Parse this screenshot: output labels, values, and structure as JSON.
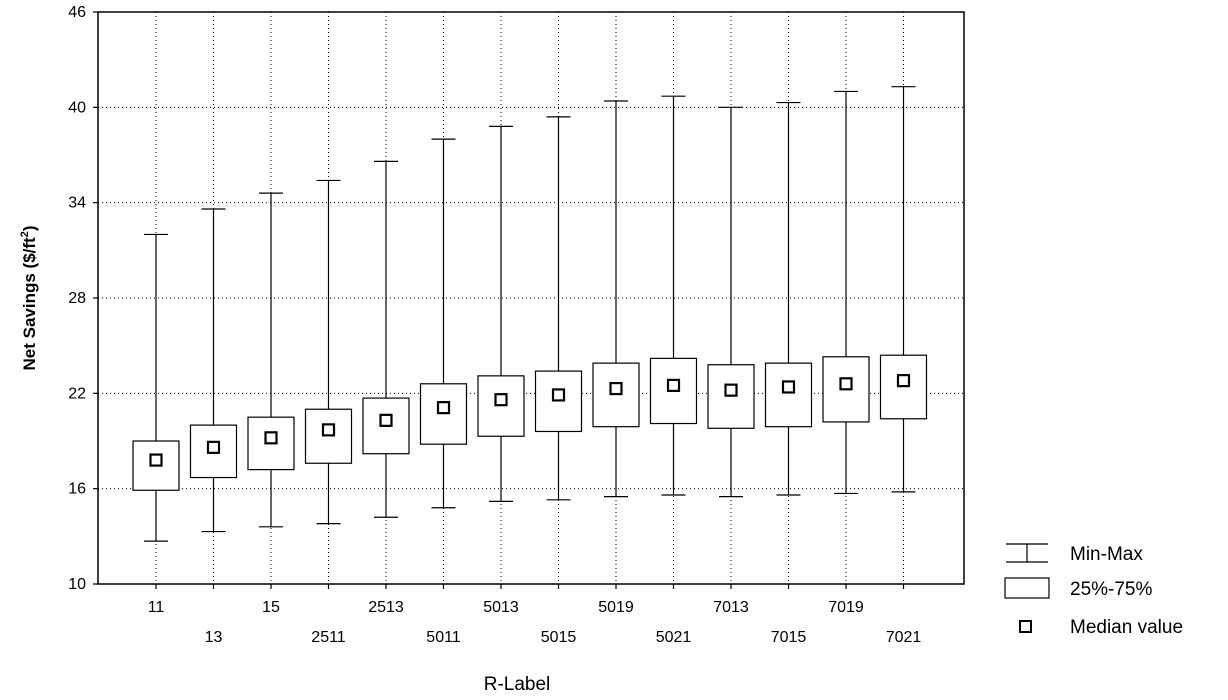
{
  "chart_data": {
    "type": "boxplot",
    "xlabel": "R-Label",
    "ylabel": "Net Savings ($/ft",
    "ylabel_superscript": "2",
    "ylabel_suffix": ")",
    "ylim": [
      10,
      46
    ],
    "yticks": [
      10,
      16,
      22,
      28,
      34,
      40,
      46
    ],
    "grid": true,
    "categories": [
      "11",
      "13",
      "15",
      "2511",
      "2513",
      "5011",
      "5013",
      "5015",
      "5019",
      "5021",
      "7013",
      "7015",
      "7019",
      "7021"
    ],
    "min": [
      12.7,
      13.3,
      13.6,
      13.8,
      14.2,
      14.8,
      15.2,
      15.3,
      15.5,
      15.6,
      15.5,
      15.6,
      15.7,
      15.8
    ],
    "q1": [
      15.9,
      16.7,
      17.2,
      17.6,
      18.2,
      18.8,
      19.3,
      19.6,
      19.9,
      20.1,
      19.8,
      19.9,
      20.2,
      20.4
    ],
    "median": [
      17.8,
      18.6,
      19.2,
      19.7,
      20.3,
      21.1,
      21.6,
      21.9,
      22.3,
      22.5,
      22.2,
      22.4,
      22.6,
      22.8
    ],
    "q3": [
      19.0,
      20.0,
      20.5,
      21.0,
      21.7,
      22.6,
      23.1,
      23.4,
      23.9,
      24.2,
      23.8,
      23.9,
      24.3,
      24.4
    ],
    "max": [
      32.0,
      33.6,
      34.6,
      35.4,
      36.6,
      38.0,
      38.8,
      39.4,
      40.4,
      40.7,
      40.0,
      40.3,
      41.0,
      41.3
    ],
    "legend": {
      "position": "bottom-right",
      "items": [
        "Min-Max",
        "25%-75%",
        "Median value"
      ]
    }
  }
}
